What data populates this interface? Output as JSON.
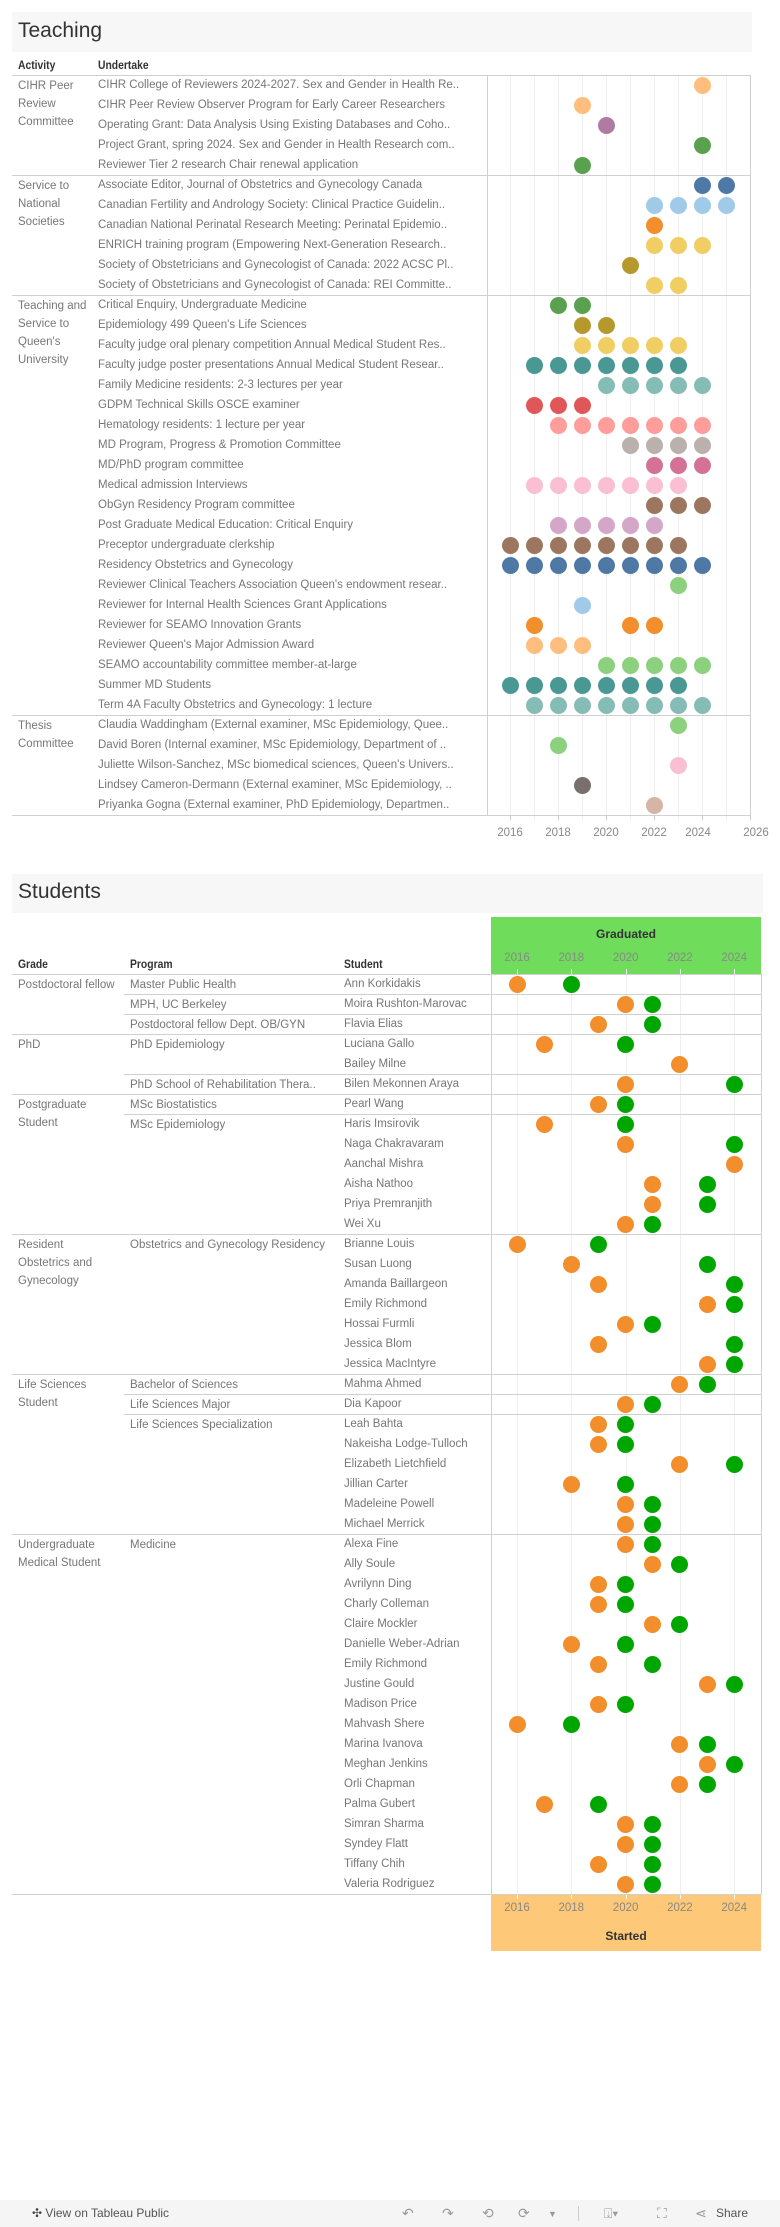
{
  "teaching": {
    "title": "Teaching",
    "headers": {
      "activity": "Activity",
      "undertake": "Undertake"
    },
    "groups": [
      {
        "activity": "CIHR Peer Review Committee",
        "rows": [
          {
            "label": "CIHR College of Reviewers 2024-2027. Sex and Gender in Health Re..",
            "years": [
              2024
            ],
            "color": "#ffbe7d"
          },
          {
            "label": "CIHR Peer Review Observer Program for Early Career Researchers",
            "years": [
              2019
            ],
            "color": "#ffbe7d"
          },
          {
            "label": "Operating Grant: Data Analysis Using Existing Databases and Coho..",
            "years": [
              2020
            ],
            "color": "#b07aa1"
          },
          {
            "label": "Project Grant, spring 2024. Sex and Gender in Health Research com..",
            "years": [
              2024
            ],
            "color": "#59a14f"
          },
          {
            "label": "Reviewer Tier 2 research Chair renewal application",
            "years": [
              2019
            ],
            "color": "#59a14f"
          }
        ]
      },
      {
        "activity": "Service to National Societies",
        "rows": [
          {
            "label": "Associate Editor, Journal of Obstetrics and Gynecology Canada",
            "years": [
              2024,
              2025
            ],
            "color": "#4e79a7"
          },
          {
            "label": "Canadian Fertility and Andrology Society: Clinical Practice Guidelin..",
            "years": [
              2022,
              2023,
              2024,
              2025
            ],
            "color": "#a0cbe8"
          },
          {
            "label": "Canadian National Perinatal Research Meeting: Perinatal Epidemio..",
            "years": [
              2022
            ],
            "color": "#f28e2b"
          },
          {
            "label": "ENRICH training program (Empowering Next-Generation Research..",
            "years": [
              2022,
              2023,
              2024
            ],
            "color": "#f1ce63"
          },
          {
            "label": "Society of Obstetricians and Gynecologist of Canada: 2022 ACSC Pl..",
            "years": [
              2021
            ],
            "color": "#b6992d"
          },
          {
            "label": "Society of Obstetricians and Gynecologist of Canada: REI Committe..",
            "years": [
              2022,
              2023
            ],
            "color": "#f1ce63"
          }
        ]
      },
      {
        "activity": "Teaching and Service to Queen's University",
        "rows": [
          {
            "label": "Critical Enquiry, Undergraduate Medicine",
            "years": [
              2018,
              2019
            ],
            "color": "#59a14f"
          },
          {
            "label": "Epidemiology 499 Queen's Life Sciences",
            "years": [
              2019,
              2020
            ],
            "color": "#b6992d"
          },
          {
            "label": "Faculty judge oral plenary competition Annual Medical Student Res..",
            "years": [
              2019,
              2020,
              2021,
              2022,
              2023
            ],
            "color": "#f1ce63"
          },
          {
            "label": "Faculty judge poster presentations Annual Medical Student Resear..",
            "years": [
              2017,
              2018,
              2019,
              2020,
              2021,
              2022,
              2023
            ],
            "color": "#499894"
          },
          {
            "label": "Family Medicine residents: 2-3 lectures per year",
            "years": [
              2020,
              2021,
              2022,
              2023,
              2024
            ],
            "color": "#86bcb6"
          },
          {
            "label": "GDPM Technical Skills OSCE examiner",
            "years": [
              2017,
              2018,
              2019
            ],
            "color": "#e15759"
          },
          {
            "label": "Hematology residents: 1 lecture per year",
            "years": [
              2018,
              2019,
              2020,
              2021,
              2022,
              2023,
              2024
            ],
            "color": "#ff9d9a"
          },
          {
            "label": "MD Program, Progress & Promotion Committee",
            "years": [
              2021,
              2022,
              2023,
              2024
            ],
            "color": "#bab0ac"
          },
          {
            "label": "MD/PhD program committee",
            "years": [
              2022,
              2023,
              2024
            ],
            "color": "#d37295"
          },
          {
            "label": "Medical admission Interviews",
            "years": [
              2017,
              2018,
              2019,
              2020,
              2021,
              2022,
              2023
            ],
            "color": "#fabfd2"
          },
          {
            "label": "ObGyn Residency Program committee",
            "years": [
              2022,
              2023,
              2024
            ],
            "color": "#9d7660"
          },
          {
            "label": "Post Graduate Medical Education: Critical Enquiry",
            "years": [
              2018,
              2019,
              2020,
              2021,
              2022
            ],
            "color": "#d4a6c8"
          },
          {
            "label": "Preceptor undergraduate clerkship",
            "years": [
              2016,
              2017,
              2018,
              2019,
              2020,
              2021,
              2022,
              2023
            ],
            "color": "#9d7660"
          },
          {
            "label": "Residency Obstetrics and Gynecology",
            "years": [
              2016,
              2017,
              2018,
              2019,
              2020,
              2021,
              2022,
              2023,
              2024
            ],
            "color": "#4e79a7"
          },
          {
            "label": "Reviewer Clinical Teachers Association Queen's endowment resear..",
            "years": [
              2023
            ],
            "color": "#8cd17d"
          },
          {
            "label": "Reviewer for Internal Health Sciences Grant Applications",
            "years": [
              2019
            ],
            "color": "#a0cbe8"
          },
          {
            "label": "Reviewer for SEAMO Innovation Grants",
            "years": [
              2017,
              2021,
              2022
            ],
            "color": "#f28e2b"
          },
          {
            "label": "Reviewer Queen's Major Admission Award",
            "years": [
              2017,
              2018,
              2019
            ],
            "color": "#ffbe7d"
          },
          {
            "label": "SEAMO accountability committee member-at-large",
            "years": [
              2020,
              2021,
              2022,
              2023,
              2024
            ],
            "color": "#8cd17d"
          },
          {
            "label": "Summer MD Students",
            "years": [
              2016,
              2017,
              2018,
              2019,
              2020,
              2021,
              2022,
              2023
            ],
            "color": "#499894"
          },
          {
            "label": "Term 4A Faculty Obstetrics and Gynecology: 1 lecture",
            "years": [
              2017,
              2018,
              2019,
              2020,
              2021,
              2022,
              2023,
              2024
            ],
            "color": "#86bcb6"
          }
        ]
      },
      {
        "activity": "Thesis Committee",
        "rows": [
          {
            "label": "Claudia Waddingham (External examiner, MSc Epidemiology, Quee..",
            "years": [
              2023
            ],
            "color": "#8cd17d"
          },
          {
            "label": "David Boren (Internal examiner, MSc Epidemiology, Department of ..",
            "years": [
              2018
            ],
            "color": "#8cd17d"
          },
          {
            "label": "Juliette Wilson-Sanchez, MSc biomedical sciences, Queen's Univers..",
            "years": [
              2023
            ],
            "color": "#fabfd2"
          },
          {
            "label": "Lindsey Cameron-Dermann (External examiner, MSc Epidemiology, ..",
            "years": [
              2019
            ],
            "color": "#79706e"
          },
          {
            "label": "Priyanka Gogna (External examiner, PhD Epidemiology, Departmen..",
            "years": [
              2022
            ],
            "color": "#d7b5a6"
          }
        ]
      }
    ],
    "axis": {
      "min": 2015.5,
      "max": 2026,
      "ticks": [
        "2016",
        "2018",
        "2020",
        "2022",
        "2024",
        "2026"
      ]
    }
  },
  "students": {
    "title": "Students",
    "headers": {
      "grade": "Grade",
      "program": "Program",
      "student": "Student"
    },
    "top_label": "Graduated",
    "bottom_label": "Started",
    "axis_ticks": [
      "2016",
      "2018",
      "2020",
      "2022",
      "2024"
    ],
    "colors": {
      "started": "#f28e2b",
      "graduated": "#00a600",
      "graduated_band": "#6fdc5c",
      "started_band": "#fdc877"
    },
    "grades": [
      {
        "grade": "Postdoctoral fellow",
        "programs": [
          {
            "program": "Master Public Health",
            "students": [
              {
                "name": "Ann Korkidakis",
                "started": 2016,
                "graduated": 2018
              }
            ]
          },
          {
            "program": "MPH, UC Berkeley",
            "students": [
              {
                "name": "Moira Rushton-Marovac",
                "started": 2020,
                "graduated": 2021
              }
            ]
          },
          {
            "program": "Postdoctoral fellow Dept. OB/GYN",
            "students": [
              {
                "name": "Flavia Elias",
                "started": 2019,
                "graduated": 2021
              }
            ]
          }
        ]
      },
      {
        "grade": "PhD",
        "programs": [
          {
            "program": "PhD Epidemiology",
            "students": [
              {
                "name": "Luciana Gallo",
                "started": 2017,
                "graduated": 2020
              },
              {
                "name": "Bailey Milne",
                "started": 2022,
                "graduated": null
              }
            ]
          },
          {
            "program": "PhD School of Rehabilitation Thera..",
            "students": [
              {
                "name": "Bilen Mekonnen Araya",
                "started": 2020,
                "graduated": 2024
              }
            ]
          }
        ]
      },
      {
        "grade": "Postgraduate Student",
        "programs": [
          {
            "program": "MSc Biostatistics",
            "students": [
              {
                "name": "Pearl Wang",
                "started": 2019,
                "graduated": 2020
              }
            ]
          },
          {
            "program": "MSc Epidemiology",
            "students": [
              {
                "name": "Haris Imsirovik",
                "started": 2017,
                "graduated": 2020
              },
              {
                "name": "Naga Chakravaram",
                "started": 2020,
                "graduated": 2024
              },
              {
                "name": "Aanchal Mishra",
                "started": 2024,
                "graduated": null
              },
              {
                "name": "Aisha Nathoo",
                "started": 2021,
                "graduated": 2023
              },
              {
                "name": "Priya Premranjith",
                "started": 2021,
                "graduated": 2023
              },
              {
                "name": "Wei Xu",
                "started": 2020,
                "graduated": 2021
              }
            ]
          }
        ]
      },
      {
        "grade": "Resident Obstetrics and Gynecology",
        "programs": [
          {
            "program": "Obstetrics and Gynecology Residency",
            "students": [
              {
                "name": "Brianne Louis",
                "started": 2016,
                "graduated": 2019
              },
              {
                "name": "Susan Luong",
                "started": 2018,
                "graduated": 2023
              },
              {
                "name": "Amanda Baillargeon",
                "started": 2019,
                "graduated": 2024
              },
              {
                "name": "Emily Richmond",
                "started": 2023,
                "graduated": 2024
              },
              {
                "name": "Hossai Furmli",
                "started": 2020,
                "graduated": 2021
              },
              {
                "name": "Jessica Blom",
                "started": 2019,
                "graduated": 2024
              },
              {
                "name": "Jessica MacIntyre",
                "started": 2023,
                "graduated": 2024
              }
            ]
          }
        ]
      },
      {
        "grade": "Life Sciences Student",
        "programs": [
          {
            "program": "Bachelor of Sciences",
            "students": [
              {
                "name": "Mahma Ahmed",
                "started": 2022,
                "graduated": 2023
              }
            ]
          },
          {
            "program": "Life Sciences Major",
            "students": [
              {
                "name": "Dia Kapoor",
                "started": 2020,
                "graduated": 2021
              }
            ]
          },
          {
            "program": "Life Sciences Specialization",
            "students": [
              {
                "name": "Leah Bahta",
                "started": 2019,
                "graduated": 2020
              },
              {
                "name": "Nakeisha Lodge-Tulloch",
                "started": 2019,
                "graduated": 2020
              },
              {
                "name": "Elizabeth Lietchfield",
                "started": 2022,
                "graduated": 2024
              },
              {
                "name": "Jillian Carter",
                "started": 2018,
                "graduated": 2020
              },
              {
                "name": "Madeleine Powell",
                "started": 2020,
                "graduated": 2021
              },
              {
                "name": "Michael Merrick",
                "started": 2020,
                "graduated": 2021
              }
            ]
          }
        ]
      },
      {
        "grade": "Undergraduate Medical Student",
        "programs": [
          {
            "program": "Medicine",
            "students": [
              {
                "name": "Alexa Fine",
                "started": 2020,
                "graduated": 2021
              },
              {
                "name": "Ally Soule",
                "started": 2021,
                "graduated": 2022
              },
              {
                "name": "Avrilynn Ding",
                "started": 2019,
                "graduated": 2020
              },
              {
                "name": "Charly Colleman",
                "started": 2019,
                "graduated": 2020
              },
              {
                "name": "Claire Mockler",
                "started": 2021,
                "graduated": 2022
              },
              {
                "name": "Danielle Weber-Adrian",
                "started": 2018,
                "graduated": 2020
              },
              {
                "name": "Emily Richmond",
                "started": 2019,
                "graduated": 2021
              },
              {
                "name": "Justine Gould",
                "started": 2023,
                "graduated": 2024
              },
              {
                "name": "Madison Price",
                "started": 2019,
                "graduated": 2020
              },
              {
                "name": "Mahvash Shere",
                "started": 2016,
                "graduated": 2018
              },
              {
                "name": "Marina Ivanova",
                "started": 2022,
                "graduated": 2023
              },
              {
                "name": "Meghan Jenkins",
                "started": 2023,
                "graduated": 2024
              },
              {
                "name": "Orli Chapman",
                "started": 2022,
                "graduated": 2023
              },
              {
                "name": "Palma Gubert",
                "started": 2017,
                "graduated": 2019
              },
              {
                "name": "Simran Sharma",
                "started": 2020,
                "graduated": 2021
              },
              {
                "name": "Syndey Flatt",
                "started": 2020,
                "graduated": 2021
              },
              {
                "name": "Tiffany Chih",
                "started": 2019,
                "graduated": 2021
              },
              {
                "name": "Valeria Rodriguez",
                "started": 2020,
                "graduated": 2021
              }
            ]
          }
        ]
      }
    ]
  },
  "footer": {
    "view_label": "View on Tableau Public",
    "share_label": "Share"
  },
  "chart_data": [
    {
      "type": "scatter",
      "title": "Teaching",
      "xlabel": "",
      "ylabel": "Undertake",
      "xlim": [
        2015.5,
        2026
      ],
      "note": "see teaching.groups for per-row years"
    },
    {
      "type": "scatter",
      "title": "Students",
      "xlabel": "Graduated / Started",
      "xlim": [
        2015.5,
        2024.5
      ],
      "note": "see students.grades for started/graduated years"
    }
  ]
}
